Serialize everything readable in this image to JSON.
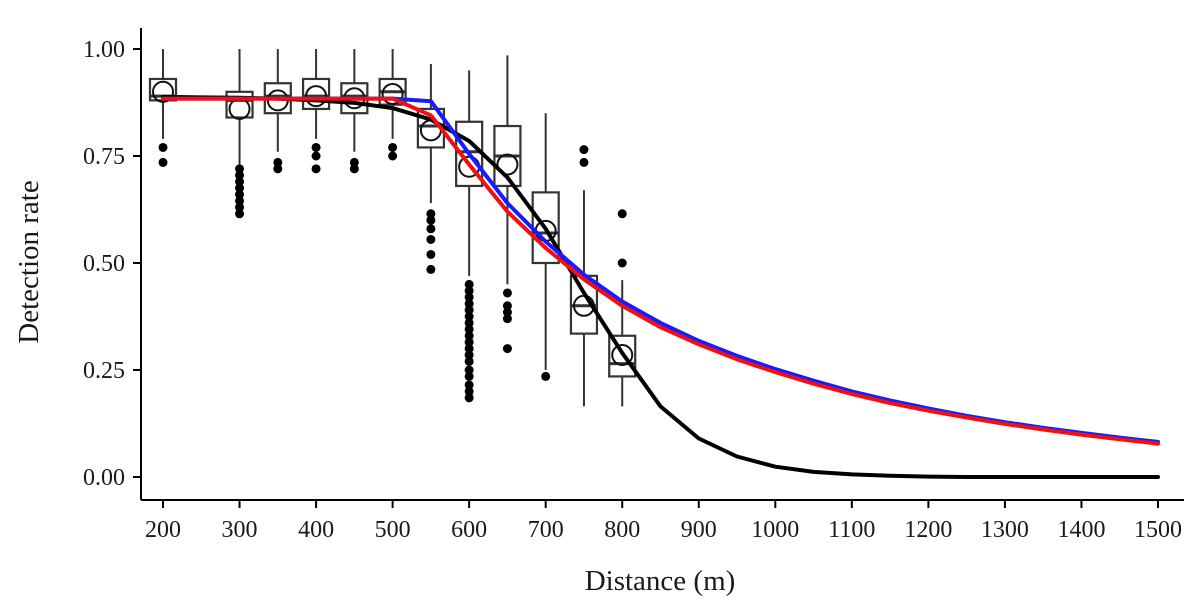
{
  "chart_data": {
    "type": "line",
    "xlabel": "Distance (m)",
    "ylabel": "Detection rate",
    "xlim": [
      200,
      1500
    ],
    "ylim": [
      0,
      1
    ],
    "x_ticks": [
      200,
      300,
      400,
      500,
      600,
      700,
      800,
      900,
      1000,
      1100,
      1200,
      1300,
      1400,
      1500
    ],
    "y_ticks": [
      0,
      0.25,
      0.5,
      0.75,
      1.0
    ],
    "y_tick_labels": [
      "0.00",
      "0.25",
      "0.50",
      "0.75",
      "1.00"
    ],
    "grid": false,
    "boxplots": [
      {
        "x": 200,
        "whisker_low": 0.79,
        "q1": 0.88,
        "median": 0.89,
        "q3": 0.93,
        "whisker_high": 1.0,
        "mean": 0.9,
        "outliers": [
          0.77,
          0.735
        ]
      },
      {
        "x": 300,
        "whisker_low": 0.73,
        "q1": 0.84,
        "median": 0.88,
        "q3": 0.9,
        "whisker_high": 1.0,
        "mean": 0.86,
        "outliers": [
          0.72,
          0.705,
          0.69,
          0.675,
          0.66,
          0.645,
          0.63,
          0.615
        ]
      },
      {
        "x": 350,
        "whisker_low": 0.76,
        "q1": 0.85,
        "median": 0.89,
        "q3": 0.92,
        "whisker_high": 1.0,
        "mean": 0.88,
        "outliers": [
          0.735,
          0.72
        ]
      },
      {
        "x": 400,
        "whisker_low": 0.79,
        "q1": 0.86,
        "median": 0.89,
        "q3": 0.93,
        "whisker_high": 1.0,
        "mean": 0.89,
        "outliers": [
          0.77,
          0.75,
          0.72
        ]
      },
      {
        "x": 450,
        "whisker_low": 0.76,
        "q1": 0.85,
        "median": 0.89,
        "q3": 0.92,
        "whisker_high": 1.0,
        "mean": 0.885,
        "outliers": [
          0.735,
          0.72
        ]
      },
      {
        "x": 500,
        "whisker_low": 0.79,
        "q1": 0.87,
        "median": 0.9,
        "q3": 0.93,
        "whisker_high": 1.0,
        "mean": 0.895,
        "outliers": [
          0.77,
          0.75
        ]
      },
      {
        "x": 550,
        "whisker_low": 0.64,
        "q1": 0.77,
        "median": 0.82,
        "q3": 0.86,
        "whisker_high": 0.965,
        "mean": 0.81,
        "outliers": [
          0.615,
          0.6,
          0.58,
          0.555,
          0.52,
          0.485
        ]
      },
      {
        "x": 600,
        "whisker_low": 0.47,
        "q1": 0.68,
        "median": 0.76,
        "q3": 0.83,
        "whisker_high": 0.95,
        "mean": 0.725,
        "outliers": [
          0.45,
          0.435,
          0.42,
          0.405,
          0.39,
          0.375,
          0.36,
          0.345,
          0.33,
          0.315,
          0.3,
          0.285,
          0.27,
          0.25,
          0.235,
          0.215,
          0.2,
          0.185
        ]
      },
      {
        "x": 650,
        "whisker_low": 0.45,
        "q1": 0.68,
        "median": 0.75,
        "q3": 0.82,
        "whisker_high": 0.985,
        "mean": 0.73,
        "outliers": [
          0.43,
          0.4,
          0.385,
          0.37,
          0.3
        ]
      },
      {
        "x": 700,
        "whisker_low": 0.25,
        "q1": 0.5,
        "median": 0.57,
        "q3": 0.665,
        "whisker_high": 0.85,
        "mean": 0.575,
        "outliers": [
          0.235
        ]
      },
      {
        "x": 750,
        "whisker_low": 0.165,
        "q1": 0.335,
        "median": 0.4,
        "q3": 0.47,
        "whisker_high": 0.67,
        "mean": 0.4,
        "outliers": [
          0.765,
          0.735
        ]
      },
      {
        "x": 800,
        "whisker_low": 0.165,
        "q1": 0.235,
        "median": 0.265,
        "q3": 0.33,
        "whisker_high": 0.46,
        "mean": 0.285,
        "outliers": [
          0.615,
          0.5
        ]
      }
    ],
    "series": [
      {
        "color": "#000000",
        "x": [
          200,
          250,
          300,
          350,
          400,
          450,
          500,
          550,
          600,
          650,
          700,
          750,
          800,
          850,
          900,
          950,
          1000,
          1050,
          1100,
          1150,
          1200,
          1250,
          1300,
          1350,
          1400,
          1450,
          1500
        ],
        "y": [
          0.888,
          0.887,
          0.886,
          0.884,
          0.88,
          0.874,
          0.862,
          0.835,
          0.785,
          0.7,
          0.58,
          0.43,
          0.29,
          0.165,
          0.09,
          0.048,
          0.024,
          0.012,
          0.006,
          0.003,
          0.001,
          0.0,
          0.0,
          0.0,
          0.0,
          0.0,
          0.0
        ]
      },
      {
        "color": "#1a1aff",
        "x": [
          200,
          250,
          300,
          350,
          400,
          450,
          500,
          550,
          600,
          650,
          700,
          750,
          800,
          850,
          900,
          950,
          1000,
          1050,
          1100,
          1150,
          1200,
          1250,
          1300,
          1350,
          1400,
          1450,
          1500
        ],
        "y": [
          0.884,
          0.884,
          0.884,
          0.884,
          0.884,
          0.884,
          0.884,
          0.878,
          0.755,
          0.64,
          0.55,
          0.473,
          0.41,
          0.36,
          0.318,
          0.283,
          0.252,
          0.225,
          0.2,
          0.179,
          0.16,
          0.143,
          0.128,
          0.115,
          0.103,
          0.092,
          0.082
        ]
      },
      {
        "color": "#ee1111",
        "x": [
          200,
          250,
          300,
          350,
          400,
          450,
          500,
          550,
          600,
          650,
          700,
          750,
          800,
          850,
          900,
          950,
          1000,
          1050,
          1100,
          1150,
          1200,
          1250,
          1300,
          1350,
          1400,
          1450,
          1500
        ],
        "y": [
          0.884,
          0.884,
          0.884,
          0.884,
          0.884,
          0.884,
          0.884,
          0.845,
          0.73,
          0.62,
          0.535,
          0.462,
          0.4,
          0.35,
          0.31,
          0.275,
          0.245,
          0.218,
          0.194,
          0.173,
          0.155,
          0.139,
          0.124,
          0.111,
          0.099,
          0.088,
          0.078
        ]
      }
    ]
  }
}
